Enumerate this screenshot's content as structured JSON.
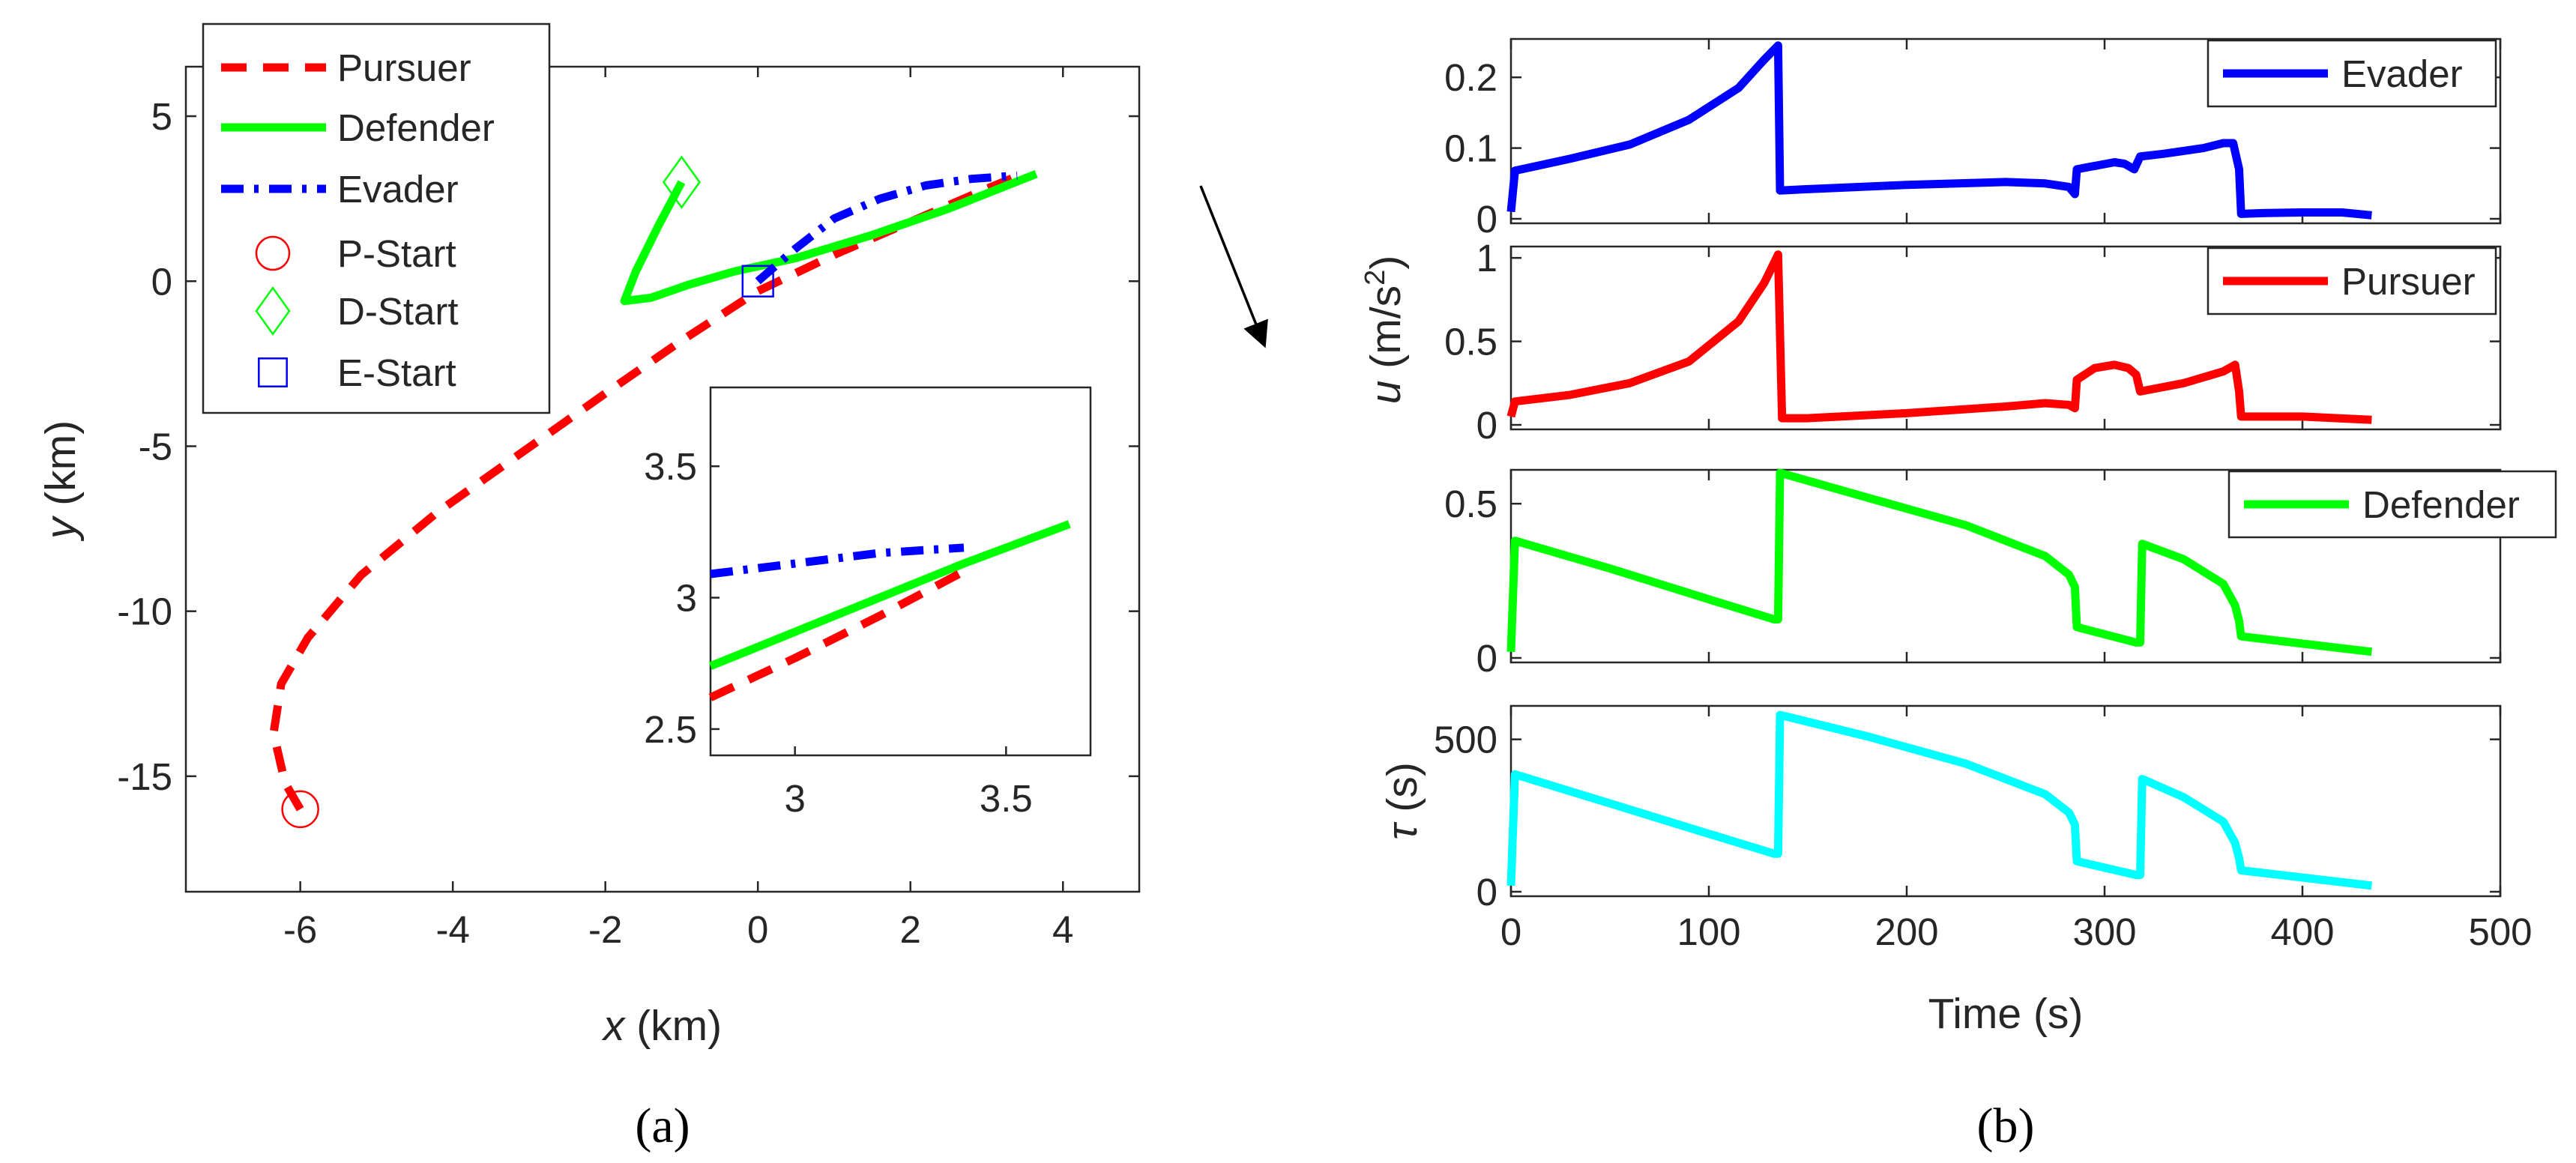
{
  "chart_data": [
    {
      "id": "a",
      "type": "line",
      "caption": "(a)",
      "xlabel": {
        "var": "x",
        "unit": " (km)"
      },
      "ylabel": {
        "var": "y",
        "unit": " (km)"
      },
      "xlim": [
        -7.5,
        5
      ],
      "ylim": [
        -18.5,
        6.5
      ],
      "xticks": [
        -6,
        -4,
        -2,
        0,
        2,
        4
      ],
      "yticks": [
        5,
        0,
        -5,
        -10,
        -15
      ],
      "series": [
        {
          "name": "Pursuer",
          "color": "#ff0000",
          "style": "dashed",
          "x": [
            -6.0,
            -6.2,
            -6.35,
            -6.25,
            -5.9,
            -5.2,
            -4.2,
            -3.1,
            -2.0,
            -1.0,
            0.0,
            1.0,
            2.0,
            3.0,
            3.4
          ],
          "y": [
            -16.0,
            -15.2,
            -13.7,
            -12.2,
            -10.8,
            -8.9,
            -7.0,
            -5.2,
            -3.4,
            -1.8,
            -0.3,
            0.8,
            1.8,
            2.8,
            3.18
          ]
        },
        {
          "name": "Defender",
          "color": "#00ff00",
          "style": "solid",
          "x": [
            -1.0,
            -1.3,
            -1.6,
            -1.75,
            -1.4,
            -0.9,
            -0.3,
            0.5,
            1.5,
            2.5,
            3.65
          ],
          "y": [
            3.0,
            1.7,
            0.3,
            -0.6,
            -0.5,
            -0.1,
            0.3,
            0.7,
            1.4,
            2.2,
            3.25
          ]
        },
        {
          "name": "Evader",
          "color": "#0000ff",
          "style": "dashdot",
          "x": [
            0.0,
            0.5,
            1.0,
            1.6,
            2.2,
            2.8,
            3.4
          ],
          "y": [
            0.0,
            1.0,
            1.9,
            2.5,
            2.9,
            3.1,
            3.2
          ]
        }
      ],
      "markers": [
        {
          "name": "P-Start",
          "shape": "circle",
          "color": "#ff0000",
          "x": -6,
          "y": -16
        },
        {
          "name": "D-Start",
          "shape": "diamond",
          "color": "#00ff00",
          "x": -1,
          "y": 3
        },
        {
          "name": "E-Start",
          "shape": "square",
          "color": "#0000ff",
          "x": 0,
          "y": 0
        }
      ],
      "inset": {
        "xlim": [
          2.8,
          3.7
        ],
        "ylim": [
          2.4,
          3.8
        ],
        "xticks": [
          3,
          3.5
        ],
        "yticks": [
          3.5,
          3,
          2.5
        ],
        "series": [
          {
            "name": "Evader",
            "x": [
              2.8,
              3.0,
              3.2,
              3.4
            ],
            "y": [
              3.09,
              3.13,
              3.17,
              3.19
            ]
          },
          {
            "name": "Defender",
            "x": [
              2.8,
              3.0,
              3.2,
              3.4,
              3.65
            ],
            "y": [
              2.74,
              2.87,
              3.0,
              3.13,
              3.28
            ]
          },
          {
            "name": "Pursuer",
            "x": [
              2.8,
              3.0,
              3.2,
              3.4
            ],
            "y": [
              2.62,
              2.77,
              2.93,
              3.1
            ]
          }
        ]
      }
    },
    {
      "id": "b",
      "type": "line",
      "caption": "(b)",
      "xlabel": "Time (s)",
      "ylabel_u": {
        "var": "u",
        "unit": " (m/s",
        "sup": "2",
        "close": ")"
      },
      "xlim": [
        0,
        500
      ],
      "xticks": [
        0,
        100,
        200,
        300,
        400,
        500
      ],
      "panels": [
        {
          "name": "Evader",
          "color": "#0000ff",
          "legend": true,
          "ylim": [
            0,
            0.25
          ],
          "yticks": [
            0,
            0.1,
            0.2
          ],
          "x": [
            0,
            2,
            30,
            60,
            90,
            115,
            128,
            135,
            136,
            150,
            200,
            250,
            270,
            282,
            285,
            286,
            305,
            310,
            315,
            318,
            330,
            350,
            360,
            365,
            368,
            369,
            380,
            400,
            420,
            435
          ],
          "y": [
            0.01,
            0.068,
            0.085,
            0.105,
            0.14,
            0.185,
            0.225,
            0.245,
            0.04,
            0.042,
            0.048,
            0.052,
            0.05,
            0.045,
            0.035,
            0.07,
            0.08,
            0.078,
            0.07,
            0.088,
            0.092,
            0.1,
            0.107,
            0.107,
            0.07,
            0.007,
            0.008,
            0.009,
            0.009,
            0.005
          ]
        },
        {
          "name": "Pursuer",
          "color": "#ff0000",
          "legend": true,
          "ylim": [
            0,
            1.05
          ],
          "yticks": [
            0,
            0.5,
            1
          ],
          "x": [
            0,
            2,
            30,
            60,
            90,
            115,
            128,
            135,
            137,
            150,
            200,
            250,
            270,
            282,
            285,
            286,
            295,
            305,
            312,
            316,
            318,
            340,
            360,
            366,
            368,
            369,
            400,
            435
          ],
          "y": [
            0.05,
            0.14,
            0.18,
            0.25,
            0.38,
            0.62,
            0.85,
            1.02,
            0.04,
            0.04,
            0.07,
            0.11,
            0.13,
            0.12,
            0.1,
            0.27,
            0.34,
            0.36,
            0.34,
            0.3,
            0.2,
            0.25,
            0.32,
            0.36,
            0.2,
            0.05,
            0.05,
            0.03
          ]
        },
        {
          "name": "Defender",
          "color": "#00ff00",
          "legend": true,
          "ylim": [
            0,
            0.6
          ],
          "yticks": [
            0,
            0.5
          ],
          "x": [
            0,
            2,
            50,
            100,
            133,
            135,
            136,
            180,
            230,
            270,
            282,
            285,
            286,
            316,
            318,
            319,
            340,
            360,
            366,
            368,
            369,
            435
          ],
          "y": [
            0.02,
            0.38,
            0.29,
            0.19,
            0.125,
            0.125,
            0.6,
            0.52,
            0.43,
            0.33,
            0.27,
            0.23,
            0.1,
            0.05,
            0.05,
            0.37,
            0.32,
            0.24,
            0.17,
            0.12,
            0.07,
            0.02
          ]
        },
        {
          "name": "tau",
          "color": "#00ffff",
          "legend": false,
          "ylabel": {
            "var": "τ",
            "unit": " (s)"
          },
          "ylim": [
            0,
            600
          ],
          "yticks": [
            0,
            500
          ],
          "x": [
            0,
            2,
            50,
            100,
            133,
            135,
            136,
            180,
            230,
            270,
            282,
            285,
            286,
            316,
            318,
            319,
            340,
            360,
            366,
            368,
            369,
            435
          ],
          "y": [
            20,
            385,
            290,
            190,
            125,
            125,
            580,
            510,
            420,
            320,
            260,
            220,
            100,
            55,
            55,
            370,
            310,
            230,
            160,
            110,
            70,
            20
          ]
        }
      ]
    }
  ]
}
